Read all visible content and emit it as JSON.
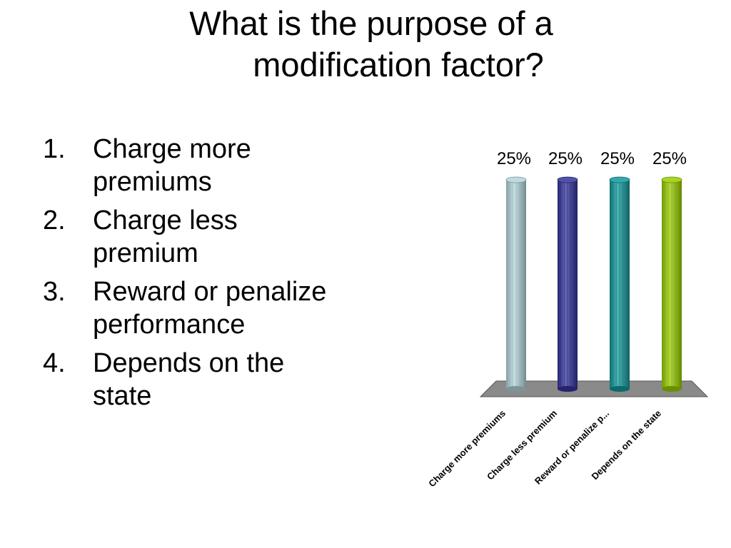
{
  "slide": {
    "title_line1": "What is the purpose of a",
    "title_line2": "modification factor?"
  },
  "options": [
    {
      "number": "1.",
      "text": "Charge more premiums"
    },
    {
      "number": "2.",
      "text": "Charge less premium"
    },
    {
      "number": "3.",
      "text": "Reward or penalize performance"
    },
    {
      "number": "4.",
      "text": "Depends on the state"
    }
  ],
  "chart_data": {
    "type": "bar",
    "categories": [
      "Charge more premiums",
      "Charge less premium",
      "Reward or penalize p...",
      "Depends on the state"
    ],
    "values": [
      25,
      25,
      25,
      25
    ],
    "data_labels": [
      "25%",
      "25%",
      "25%",
      "25%"
    ],
    "colors": [
      "#b3d5dc",
      "#33339a",
      "#13989a",
      "#99cc00"
    ],
    "ylim": [
      0,
      25
    ],
    "grid": false,
    "legend": "none",
    "style": "3d-cylinder"
  }
}
